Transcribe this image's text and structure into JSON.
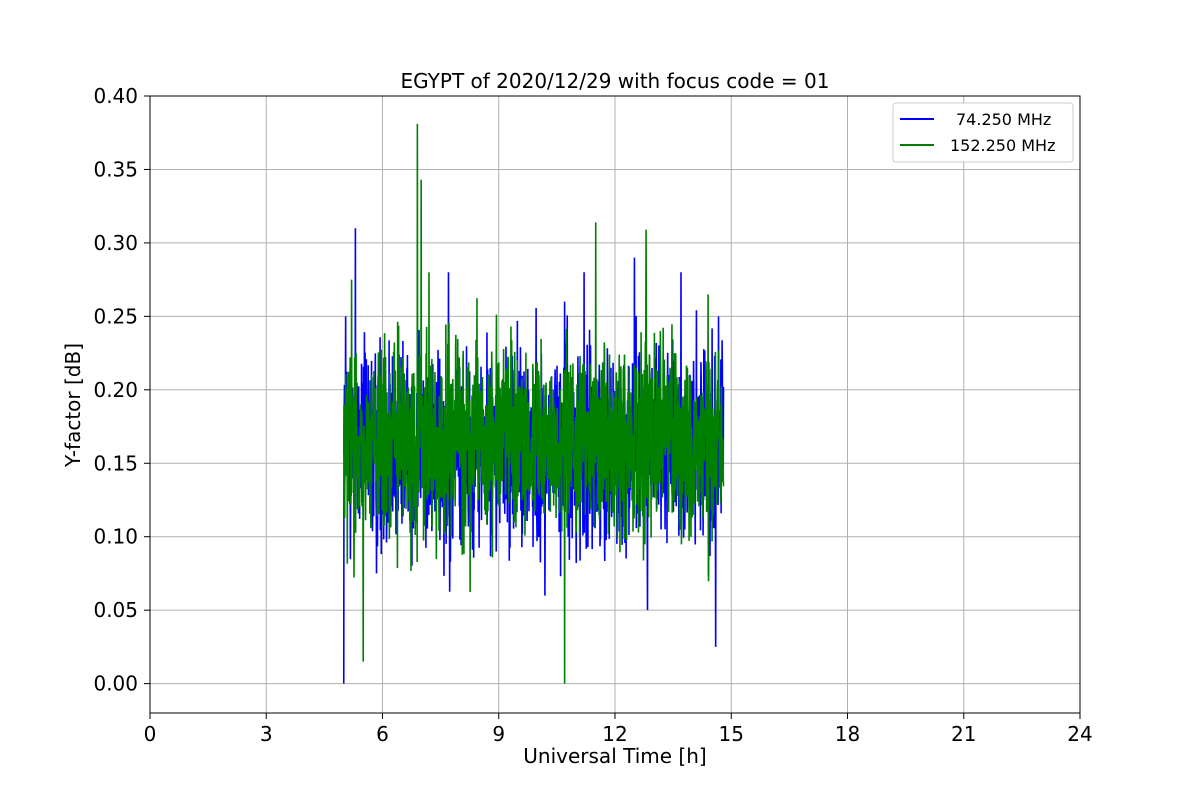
{
  "chart_data": {
    "type": "line",
    "title": "EGYPT of 2020/12/29 with focus code = 01",
    "xlabel": "Universal Time [h]",
    "ylabel": "Y-factor [dB]",
    "xlim": [
      0,
      24
    ],
    "ylim": [
      -0.02,
      0.4
    ],
    "xticks": [
      0,
      3,
      6,
      9,
      12,
      15,
      18,
      21,
      24
    ],
    "yticks": [
      0.0,
      0.05,
      0.1,
      0.15,
      0.2,
      0.25,
      0.3,
      0.35,
      0.4
    ],
    "ytick_labels": [
      "0.00",
      "0.05",
      "0.10",
      "0.15",
      "0.20",
      "0.25",
      "0.30",
      "0.35",
      "0.40"
    ],
    "grid": true,
    "legend_position": "top-right",
    "x_range_of_data": [
      5.0,
      14.8
    ],
    "series": [
      {
        "name": "74.250 MHz",
        "color": "#0000ff",
        "typical_range": [
          0.08,
          0.24
        ],
        "peaks": [
          [
            5.0,
            0.0
          ],
          [
            5.05,
            0.25
          ],
          [
            5.3,
            0.31
          ],
          [
            7.7,
            0.28
          ],
          [
            10.7,
            0.26
          ],
          [
            11.2,
            0.28
          ],
          [
            12.5,
            0.29
          ],
          [
            13.7,
            0.28
          ],
          [
            14.6,
            0.025
          ]
        ]
      },
      {
        "name": "152.250 MHz",
        "color": "#008000",
        "typical_range": [
          0.09,
          0.24
        ],
        "peaks": [
          [
            5.2,
            0.275
          ],
          [
            5.5,
            0.015
          ],
          [
            6.9,
            0.381
          ],
          [
            7.0,
            0.343
          ],
          [
            7.2,
            0.28
          ],
          [
            10.7,
            0.0
          ],
          [
            11.5,
            0.314
          ],
          [
            12.8,
            0.309
          ],
          [
            14.4,
            0.265
          ]
        ]
      }
    ]
  }
}
